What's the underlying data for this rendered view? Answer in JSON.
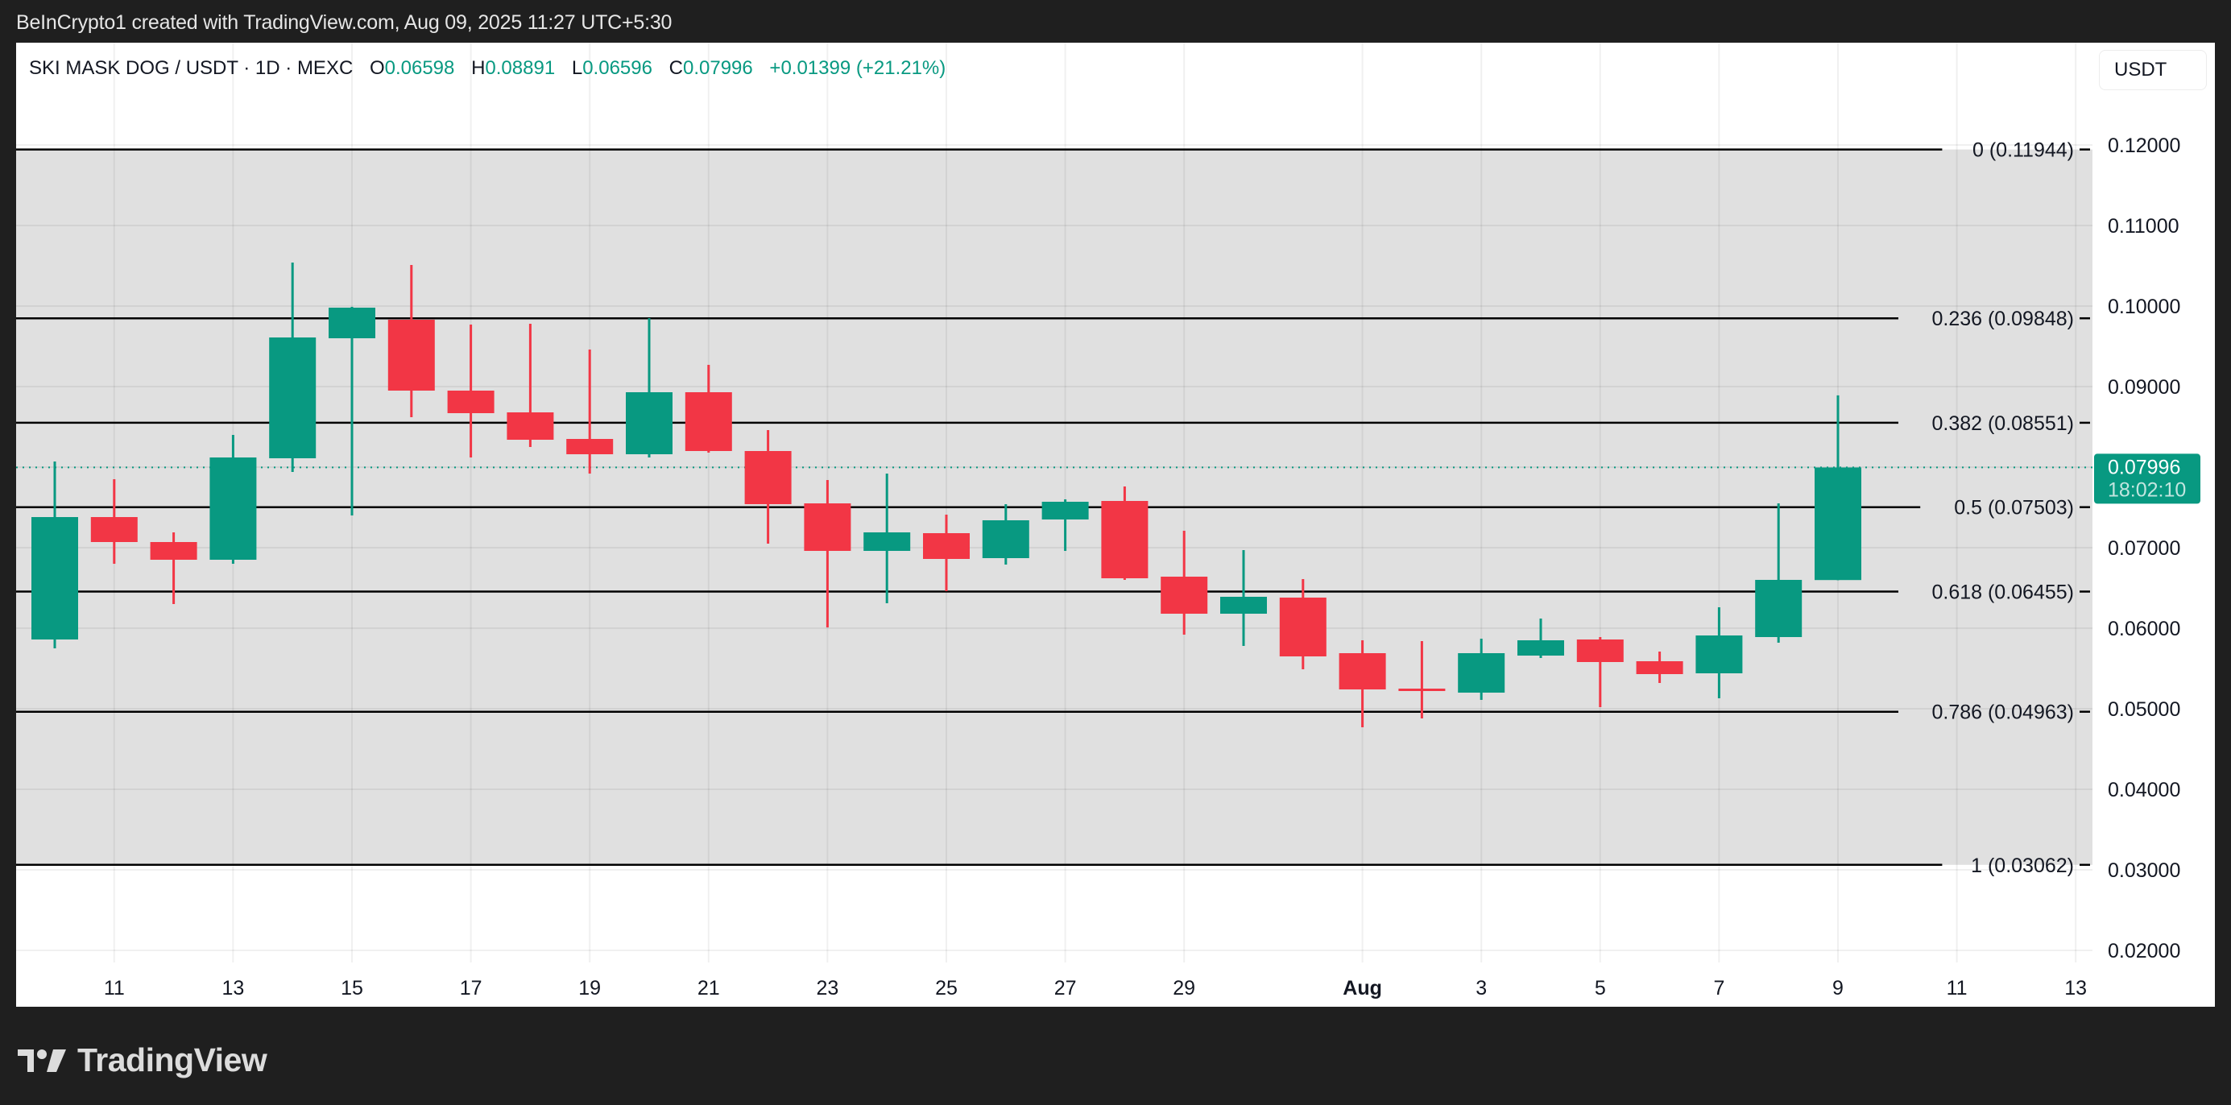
{
  "credit": "BeInCrypto1 created with TradingView.com, Aug 09, 2025 11:27 UTC+5:30",
  "legend": {
    "symbol": "SKI MASK DOG / USDT · 1D · MEXC",
    "open_label": "O",
    "open": "0.06598",
    "high_label": "H",
    "high": "0.08891",
    "low_label": "L",
    "low": "0.06596",
    "close_label": "C",
    "close": "0.07996",
    "change": "+0.01399 (+21.21%)"
  },
  "currency_button": "USDT",
  "last_price": {
    "value": "0.07996",
    "countdown": "18:02:10"
  },
  "footer": {
    "logo_text": "TradingView"
  },
  "colors": {
    "up": "#089981",
    "down": "#F23645",
    "fib_zone": "#E0E0E0",
    "grid": "#EDEDED"
  },
  "chart_data": {
    "type": "candlestick",
    "title": "SKI MASK DOG / USDT · 1D · MEXC",
    "xlabel": "",
    "ylabel": "USDT",
    "ylim": [
      0.02,
      0.12
    ],
    "y_ticks": [
      "0.12000",
      "0.11000",
      "0.10000",
      "0.09000",
      "0.08000",
      "0.07000",
      "0.06000",
      "0.05000",
      "0.04000",
      "0.03000",
      "0.02000"
    ],
    "y_tick_values": [
      0.12,
      0.11,
      0.1,
      0.09,
      0.08,
      0.07,
      0.06,
      0.05,
      0.04,
      0.03,
      0.02
    ],
    "x_ticks": [
      {
        "label": "11",
        "day": 1
      },
      {
        "label": "13",
        "day": 3
      },
      {
        "label": "15",
        "day": 5
      },
      {
        "label": "17",
        "day": 7
      },
      {
        "label": "19",
        "day": 9
      },
      {
        "label": "21",
        "day": 11
      },
      {
        "label": "23",
        "day": 13
      },
      {
        "label": "25",
        "day": 15
      },
      {
        "label": "27",
        "day": 17
      },
      {
        "label": "29",
        "day": 19
      },
      {
        "label": "Aug",
        "day": 22,
        "bold": true
      },
      {
        "label": "3",
        "day": 24
      },
      {
        "label": "5",
        "day": 26
      },
      {
        "label": "7",
        "day": 28
      },
      {
        "label": "9",
        "day": 30
      },
      {
        "label": "11",
        "day": 32
      },
      {
        "label": "13",
        "day": 34
      }
    ],
    "fib_levels": [
      {
        "ratio": "0",
        "price": 0.11944,
        "label": "0 (0.11944)"
      },
      {
        "ratio": "0.236",
        "price": 0.09848,
        "label": "0.236 (0.09848)"
      },
      {
        "ratio": "0.382",
        "price": 0.08551,
        "label": "0.382 (0.08551)"
      },
      {
        "ratio": "0.5",
        "price": 0.07503,
        "label": "0.5 (0.07503)"
      },
      {
        "ratio": "0.618",
        "price": 0.06455,
        "label": "0.618 (0.06455)"
      },
      {
        "ratio": "0.786",
        "price": 0.04963,
        "label": "0.786 (0.04963)"
      },
      {
        "ratio": "1",
        "price": 0.03062,
        "label": "1 (0.03062)"
      }
    ],
    "current_price": 0.07996,
    "candles": [
      {
        "date": "2025-07-10",
        "o": 0.0586,
        "h": 0.0807,
        "l": 0.0575,
        "c": 0.0738
      },
      {
        "date": "2025-07-11",
        "o": 0.0738,
        "h": 0.0785,
        "l": 0.068,
        "c": 0.0707
      },
      {
        "date": "2025-07-12",
        "o": 0.0707,
        "h": 0.0719,
        "l": 0.063,
        "c": 0.0685
      },
      {
        "date": "2025-07-13",
        "o": 0.0685,
        "h": 0.084,
        "l": 0.068,
        "c": 0.0812
      },
      {
        "date": "2025-07-14",
        "o": 0.0811,
        "h": 0.1054,
        "l": 0.0794,
        "c": 0.0961
      },
      {
        "date": "2025-07-15",
        "o": 0.096,
        "h": 0.0999,
        "l": 0.074,
        "c": 0.0998
      },
      {
        "date": "2025-07-16",
        "o": 0.0983,
        "h": 0.1051,
        "l": 0.0862,
        "c": 0.0895
      },
      {
        "date": "2025-07-17",
        "o": 0.0895,
        "h": 0.0977,
        "l": 0.0812,
        "c": 0.0867
      },
      {
        "date": "2025-07-18",
        "o": 0.0868,
        "h": 0.0978,
        "l": 0.0825,
        "c": 0.0834
      },
      {
        "date": "2025-07-19",
        "o": 0.0835,
        "h": 0.0946,
        "l": 0.0792,
        "c": 0.0816
      },
      {
        "date": "2025-07-20",
        "o": 0.0816,
        "h": 0.0985,
        "l": 0.0812,
        "c": 0.0893
      },
      {
        "date": "2025-07-21",
        "o": 0.0893,
        "h": 0.0927,
        "l": 0.0818,
        "c": 0.082
      },
      {
        "date": "2025-07-22",
        "o": 0.082,
        "h": 0.0846,
        "l": 0.0705,
        "c": 0.0754
      },
      {
        "date": "2025-07-23",
        "o": 0.0755,
        "h": 0.0784,
        "l": 0.0601,
        "c": 0.0696
      },
      {
        "date": "2025-07-24",
        "o": 0.0696,
        "h": 0.0792,
        "l": 0.0631,
        "c": 0.0719
      },
      {
        "date": "2025-07-25",
        "o": 0.0718,
        "h": 0.0741,
        "l": 0.0646,
        "c": 0.0686
      },
      {
        "date": "2025-07-26",
        "o": 0.0687,
        "h": 0.0754,
        "l": 0.0679,
        "c": 0.0734
      },
      {
        "date": "2025-07-27",
        "o": 0.0735,
        "h": 0.076,
        "l": 0.0696,
        "c": 0.0757
      },
      {
        "date": "2025-07-28",
        "o": 0.0758,
        "h": 0.0776,
        "l": 0.066,
        "c": 0.0662
      },
      {
        "date": "2025-07-29",
        "o": 0.0664,
        "h": 0.0721,
        "l": 0.0592,
        "c": 0.0618
      },
      {
        "date": "2025-07-30",
        "o": 0.0618,
        "h": 0.0697,
        "l": 0.0578,
        "c": 0.0639
      },
      {
        "date": "2025-07-31",
        "o": 0.0638,
        "h": 0.0661,
        "l": 0.0549,
        "c": 0.0565
      },
      {
        "date": "2025-08-01",
        "o": 0.0569,
        "h": 0.0585,
        "l": 0.0477,
        "c": 0.0524
      },
      {
        "date": "2025-08-02",
        "o": 0.0525,
        "h": 0.0584,
        "l": 0.0488,
        "c": 0.0522
      },
      {
        "date": "2025-08-03",
        "o": 0.052,
        "h": 0.0587,
        "l": 0.0511,
        "c": 0.0569
      },
      {
        "date": "2025-08-04",
        "o": 0.0566,
        "h": 0.0612,
        "l": 0.0563,
        "c": 0.0585
      },
      {
        "date": "2025-08-05",
        "o": 0.0586,
        "h": 0.0589,
        "l": 0.0502,
        "c": 0.0558
      },
      {
        "date": "2025-08-06",
        "o": 0.0559,
        "h": 0.0571,
        "l": 0.0532,
        "c": 0.0543
      },
      {
        "date": "2025-08-07",
        "o": 0.0544,
        "h": 0.0626,
        "l": 0.0513,
        "c": 0.0591
      },
      {
        "date": "2025-08-08",
        "o": 0.0589,
        "h": 0.0755,
        "l": 0.0582,
        "c": 0.066
      },
      {
        "date": "2025-08-09",
        "o": 0.06598,
        "h": 0.08891,
        "l": 0.06596,
        "c": 0.07996
      }
    ]
  }
}
